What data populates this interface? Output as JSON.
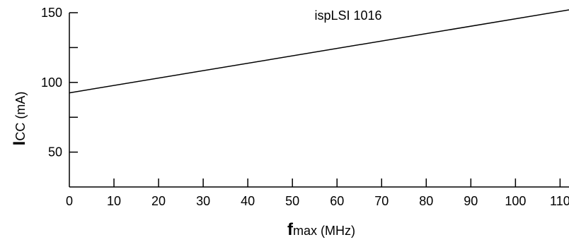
{
  "chart_data": {
    "type": "line",
    "title": "ispLSI 1016",
    "xlabel": {
      "main": "f",
      "sub": "max",
      "unit": " (MHz)"
    },
    "ylabel": {
      "main": "I",
      "sub": "CC",
      "unit": " (mA)"
    },
    "xlim": [
      0,
      112
    ],
    "ylim": [
      25,
      150
    ],
    "x_ticks": [
      0,
      10,
      20,
      30,
      40,
      50,
      60,
      70,
      80,
      90,
      100,
      110
    ],
    "x_tick_labels": [
      "0",
      "10",
      "20",
      "30",
      "40",
      "50",
      "60",
      "70",
      "80",
      "90",
      "100",
      "110"
    ],
    "y_ticks_major": [
      50,
      100,
      150
    ],
    "y_tick_labels": [
      "50",
      "100",
      "150"
    ],
    "y_ticks_minor": [
      75,
      125
    ],
    "grid": false,
    "series": [
      {
        "x": [
          0,
          112
        ],
        "y": [
          92.5,
          152
        ]
      }
    ]
  }
}
